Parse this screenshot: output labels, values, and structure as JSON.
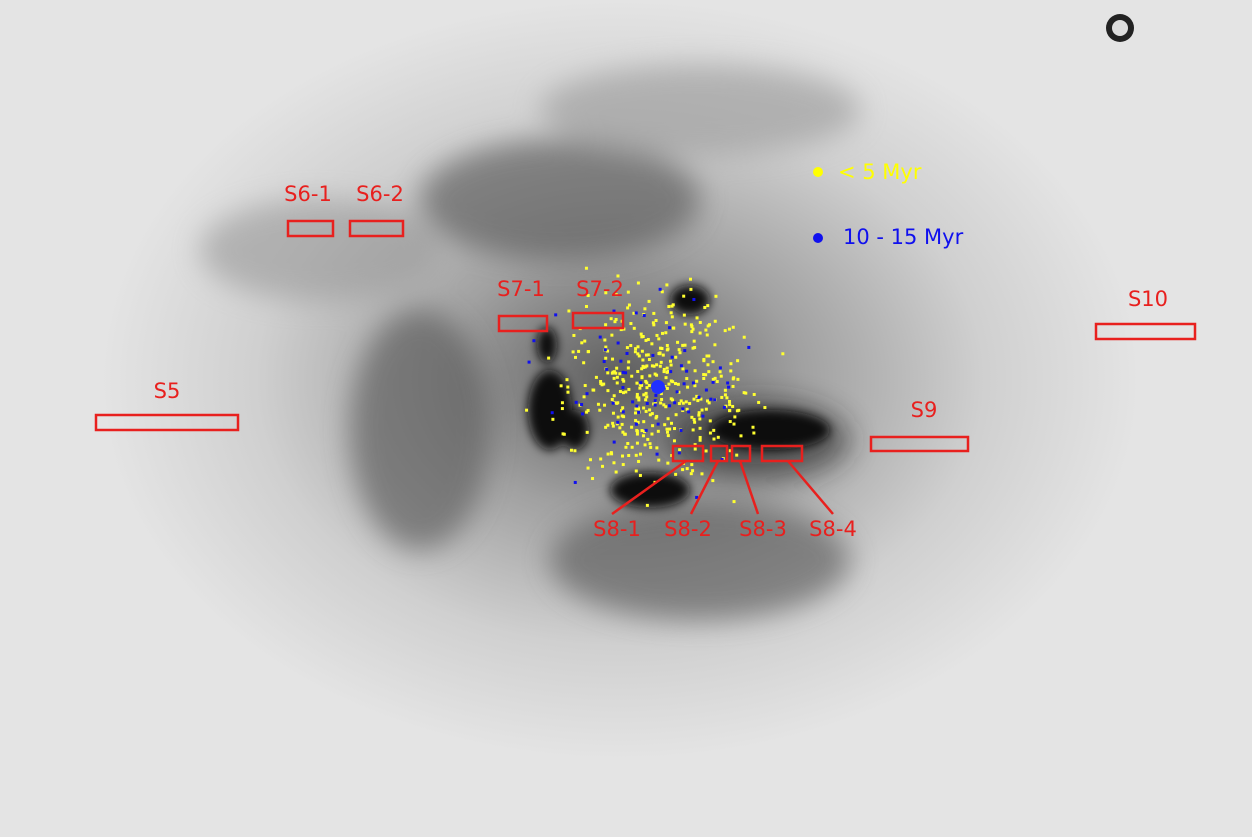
{
  "slits": [
    {
      "label": "S5"
    },
    {
      "label": "S6-1"
    },
    {
      "label": "S6-2"
    },
    {
      "label": "S7-1"
    },
    {
      "label": "S7-2"
    },
    {
      "label": "S8-1"
    },
    {
      "label": "S8-2"
    },
    {
      "label": "S8-3"
    },
    {
      "label": "S8-4"
    },
    {
      "label": "S9"
    },
    {
      "label": "S10"
    }
  ],
  "legend": [
    {
      "label": "< 5 Myr"
    },
    {
      "label": "10 - 15 Myr"
    }
  ]
}
